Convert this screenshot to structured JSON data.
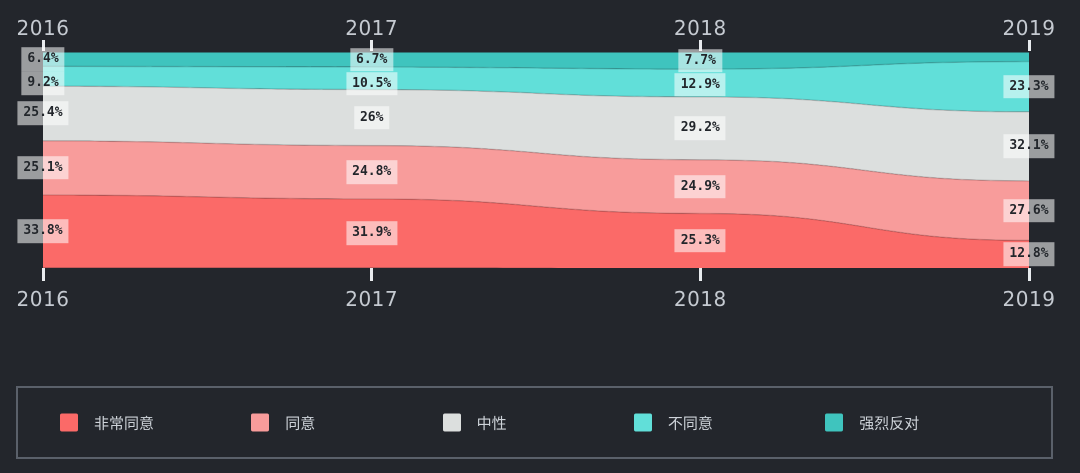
{
  "colors": {
    "background": "#23262c",
    "year_label": "#c5cad1",
    "tick": "#e8ebee",
    "chip_bg": "rgba(255,255,255,0.55)",
    "chip_text": "#22262b",
    "legend_border": "#5a606a",
    "legend_text": "#ced3d9"
  },
  "chart_data": {
    "type": "area",
    "variant": "stacked-percentage",
    "title": "",
    "xlabel": "",
    "ylabel": "",
    "x": [
      "2016",
      "2017",
      "2018",
      "2019"
    ],
    "axis": {
      "top_labels": [
        "2016",
        "2017",
        "2018",
        "2019"
      ],
      "bottom_labels": [
        "2016",
        "2017",
        "2018",
        "2019"
      ],
      "grid": false
    },
    "ylim": [
      0,
      100
    ],
    "stack_top_to_bottom": [
      "strongly-disagree",
      "disagree",
      "neutral",
      "agree",
      "strongly-agree"
    ],
    "series": [
      {
        "id": "strongly-agree",
        "name": "非常同意",
        "color": "#fb6a68",
        "values": [
          33.8,
          31.9,
          25.3,
          12.8
        ],
        "point_labels": [
          "33.8%",
          "31.9%",
          "25.3%",
          "12.8%"
        ]
      },
      {
        "id": "agree",
        "name": "同意",
        "color": "#f89c9b",
        "values": [
          25.1,
          24.8,
          24.9,
          27.6
        ],
        "point_labels": [
          "25.1%",
          "24.8%",
          "24.9%",
          "27.6%"
        ]
      },
      {
        "id": "neutral",
        "name": "中性",
        "color": "#dcdfde",
        "values": [
          25.4,
          26.0,
          29.2,
          32.1
        ],
        "point_labels": [
          "25.4%",
          "26%",
          "29.2%",
          "32.1%"
        ]
      },
      {
        "id": "disagree",
        "name": "不同意",
        "color": "#61dfd9",
        "values": [
          9.2,
          10.5,
          12.9,
          23.3
        ],
        "point_labels": [
          "9.2%",
          "10.5%",
          "12.9%",
          "23.3%"
        ]
      },
      {
        "id": "strongly-disagree",
        "name": "强烈反对",
        "color": "#3fc4be",
        "values": [
          6.4,
          6.7,
          7.7,
          4.2
        ],
        "point_labels": [
          "6.4%",
          "6.7%",
          "7.7%",
          null
        ]
      }
    ],
    "legend_position": "bottom"
  },
  "legend": {
    "items": [
      {
        "id": "strongly-agree",
        "label": "非常同意",
        "color": "#fb6a68"
      },
      {
        "id": "agree",
        "label": "同意",
        "color": "#f89c9b"
      },
      {
        "id": "neutral",
        "label": "中性",
        "color": "#dcdfde"
      },
      {
        "id": "disagree",
        "label": "不同意",
        "color": "#61dfd9"
      },
      {
        "id": "strongly-disagree",
        "label": "强烈反对",
        "color": "#3fc4be"
      }
    ]
  }
}
